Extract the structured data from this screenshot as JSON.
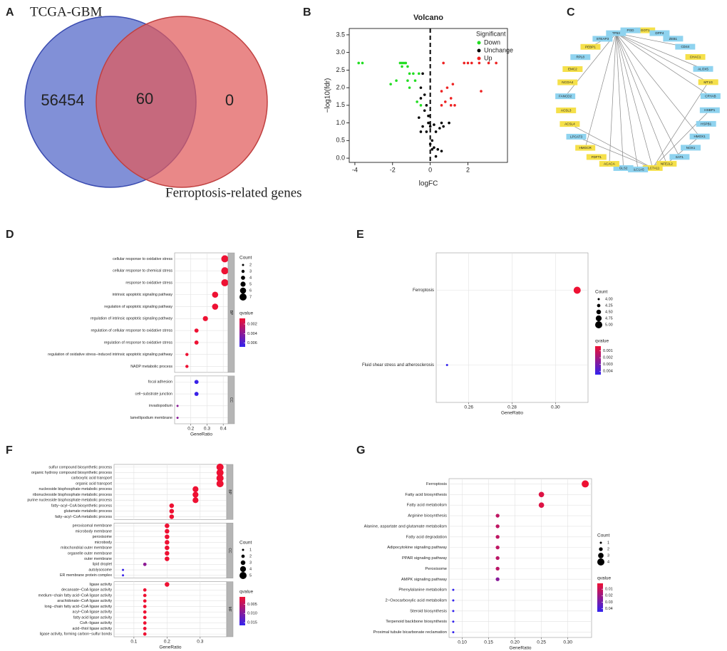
{
  "chart_data": [
    {
      "type": "venn",
      "panel": "A",
      "sets": [
        "TCGA-GBM",
        "Ferroptosis-related genes"
      ],
      "values": [
        56454,
        60,
        0
      ],
      "colors": [
        "#5065c8",
        "#e05a5a"
      ]
    },
    {
      "type": "volcano",
      "panel": "B",
      "title": "Volcano",
      "xlabel": "logFC",
      "ylabel": "−log10(fdr)",
      "legend_title": "Significant",
      "xlim": [
        -4.3,
        4.1
      ],
      "xticks": [
        -4,
        -2,
        0,
        2
      ],
      "ylim": [
        -0.12,
        3.68
      ],
      "yticks": [
        {
          "value": 0,
          "label": "0.0"
        },
        0.5,
        {
          "value": 1,
          "label": "1.0"
        },
        1.5,
        {
          "value": 2,
          "label": "2.0"
        },
        2.5,
        {
          "value": 3,
          "label": "3.0"
        },
        3.5
      ],
      "vline": 0,
      "series": [
        {
          "name": "Down",
          "color": "#22dd22",
          "x": [
            -3.8,
            -3.6,
            -1.6,
            -1.5,
            -1.4,
            -1.3,
            -1.5,
            -1.2,
            -1.1,
            -0.9,
            -0.6,
            -1.8,
            -1.2,
            -0.8,
            -1.1,
            -2.1,
            -0.7,
            -0.5
          ],
          "y": [
            2.7,
            2.7,
            2.7,
            2.7,
            2.7,
            2.7,
            2.6,
            2.6,
            2.4,
            2.4,
            2.4,
            2.2,
            2.2,
            2.2,
            2.0,
            2.1,
            1.6,
            1.5
          ]
        },
        {
          "name": "Unchange",
          "color": "#000000",
          "x": [
            -0.4,
            -0.5,
            -0.3,
            -0.5,
            -0.2,
            -0.3,
            -0.1,
            -0.1,
            0,
            0.2,
            -0.6,
            -0.4,
            -0.2,
            -0.5,
            0.3,
            0.5,
            0.7,
            0.6,
            1.0,
            0.1,
            0.2,
            0.1,
            0.4,
            0.6,
            0.3,
            0
          ],
          "y": [
            2.4,
            2.0,
            1.8,
            1.7,
            1.5,
            1.35,
            1.2,
            1.0,
            0.9,
            0.95,
            1.15,
            0.9,
            0.75,
            0.75,
            0.75,
            0.85,
            0.9,
            1.0,
            1.0,
            0.5,
            0.3,
            0.25,
            0.25,
            0.2,
            0.05,
            0.4
          ]
        },
        {
          "name": "Up",
          "color": "#ee2222",
          "x": [
            0.7,
            1.8,
            2.0,
            2.2,
            2.6,
            3.1,
            3.5,
            0.9,
            1.2,
            0.6,
            1.1,
            2.7,
            0.8,
            1.1,
            1.3,
            0.6
          ],
          "y": [
            2.7,
            2.7,
            2.7,
            2.7,
            2.7,
            2.7,
            2.7,
            2.0,
            2.1,
            1.9,
            1.7,
            1.9,
            1.6,
            1.5,
            1.5,
            1.5
          ]
        }
      ]
    },
    {
      "type": "network",
      "panel": "C",
      "nodes": [
        {
          "label": "GOT1",
          "color": "#f5e04a"
        },
        {
          "label": "DPP4",
          "color": "#8fd3ef"
        },
        {
          "label": "ZEB1",
          "color": "#8fd3ef"
        },
        {
          "label": "CD44",
          "color": "#8fd3ef"
        },
        {
          "label": "CHAC1",
          "color": "#f5e04a"
        },
        {
          "label": "ALOX5",
          "color": "#8fd3ef"
        },
        {
          "label": "MT1G",
          "color": "#f5e04a"
        },
        {
          "label": "CRYAB",
          "color": "#8fd3ef"
        },
        {
          "label": "HSBP1",
          "color": "#8fd3ef"
        },
        {
          "label": "HSPB1",
          "color": "#8fd3ef"
        },
        {
          "label": "HMOX1",
          "color": "#8fd3ef"
        },
        {
          "label": "NOX1",
          "color": "#8fd3ef"
        },
        {
          "label": "SAT1",
          "color": "#8fd3ef"
        },
        {
          "label": "NFE2L2",
          "color": "#f5e04a"
        },
        {
          "label": "SLC7A11",
          "color": "#f5e04a"
        },
        {
          "label": "SLC1A5",
          "color": "#8fd3ef"
        },
        {
          "label": "GLS2",
          "color": "#8fd3ef"
        },
        {
          "label": "ACACA",
          "color": "#f5e04a"
        },
        {
          "label": "FDFT1",
          "color": "#f5e04a"
        },
        {
          "label": "HMGCR",
          "color": "#f5e04a"
        },
        {
          "label": "LPCAT3",
          "color": "#8fd3ef"
        },
        {
          "label": "ACSL4",
          "color": "#f5e04a"
        },
        {
          "label": "ACSL3",
          "color": "#f5e04a"
        },
        {
          "label": "FANCD2",
          "color": "#8fd3ef"
        },
        {
          "label": "NCOA4",
          "color": "#f5e04a"
        },
        {
          "label": "EMC2",
          "color": "#f5e04a"
        },
        {
          "label": "RPL8",
          "color": "#8fd3ef"
        },
        {
          "label": "PEBP1",
          "color": "#f5e04a"
        },
        {
          "label": "STEAP3",
          "color": "#8fd3ef"
        },
        {
          "label": "TP53",
          "color": "#8fd3ef"
        },
        {
          "label": "PGD",
          "color": "#8fd3ef"
        }
      ],
      "edges": [
        [
          29,
          0
        ],
        [
          29,
          3
        ],
        [
          29,
          5
        ],
        [
          29,
          6
        ],
        [
          29,
          7
        ],
        [
          29,
          10
        ],
        [
          29,
          12
        ],
        [
          29,
          13
        ],
        [
          29,
          14
        ],
        [
          29,
          15
        ],
        [
          29,
          16
        ],
        [
          29,
          17
        ],
        [
          29,
          19
        ],
        [
          29,
          23
        ],
        [
          29,
          27
        ],
        [
          29,
          28
        ],
        [
          10,
          13
        ],
        [
          14,
          21
        ],
        [
          14,
          20
        ],
        [
          6,
          14
        ],
        [
          8,
          14
        ]
      ]
    },
    {
      "type": "dot",
      "panel": "D",
      "xlabel": "GeneRatio",
      "xlim": [
        0.1,
        0.43
      ],
      "xticks": [
        0.2,
        0.3,
        0.4
      ],
      "size_legend_title": "Count",
      "size_ticks": [
        2,
        3,
        4,
        5,
        6,
        7
      ],
      "color_legend_title": "qvalue",
      "color_ticks": [
        0.002,
        0.004,
        0.006
      ],
      "qlim": [
        0.0008,
        0.0068
      ],
      "color_scale": [
        "#ee1133",
        "#3322ee"
      ],
      "facets": [
        {
          "name": "BP",
          "terms": [
            "cellular response to oxidative stress",
            "cellular response to chemical stress",
            "response to oxidative stress",
            "intrinsic apoptotic signaling pathway",
            "regulation of apoptotic signaling pathway",
            "regulation of intrinsic apoptotic signaling pathway",
            "regulation of cellular response to oxidative stress",
            "regulation of response to oxidative stress",
            "regulation of oxidative stress−induced intrinsic apoptotic signaling pathway",
            "NADP metabolic process"
          ],
          "gene_ratio": [
            0.41,
            0.41,
            0.41,
            0.35,
            0.35,
            0.29,
            0.235,
            0.235,
            0.176,
            0.176
          ],
          "count": [
            7,
            7,
            7,
            6,
            6,
            5,
            4,
            4,
            3,
            3
          ],
          "qvalue": [
            0.0008,
            0.0008,
            0.0008,
            0.0008,
            0.0008,
            0.0008,
            0.0008,
            0.0008,
            0.0008,
            0.0008
          ]
        },
        {
          "name": "CC",
          "terms": [
            "focal adhesion",
            "cell−substrate junction",
            "invadopodium",
            "lamellipodium membrane"
          ],
          "gene_ratio": [
            0.235,
            0.235,
            0.118,
            0.118
          ],
          "count": [
            4,
            4,
            2,
            2
          ],
          "qvalue": [
            0.0066,
            0.0066,
            0.004,
            0.004
          ]
        }
      ]
    },
    {
      "type": "dot",
      "panel": "E",
      "xlabel": "GeneRatio",
      "xlim": [
        0.245,
        0.315
      ],
      "xticks": [
        0.26,
        0.28,
        {
          "value": 0.3,
          "label": "0.30"
        }
      ],
      "size_legend_title": "Count",
      "size_ticks": [
        {
          "value": 4,
          "label": "4.00"
        },
        4.25,
        {
          "value": 4.5,
          "label": "4.50"
        },
        4.75,
        {
          "value": 5,
          "label": "5.00"
        }
      ],
      "color_legend_title": "qvalue",
      "color_ticks": [
        0.001,
        0.002,
        0.003,
        0.004
      ],
      "qlim": [
        0.0003,
        0.0045
      ],
      "color_scale": [
        "#ee1133",
        "#3322ee"
      ],
      "facets": [
        {
          "terms": [
            "Ferroptosis",
            "Fluid shear stress and atherosclerosis"
          ],
          "gene_ratio": [
            0.31,
            0.25
          ],
          "count": [
            5,
            4
          ],
          "qvalue": [
            0.0003,
            0.0045
          ]
        }
      ]
    },
    {
      "type": "dot",
      "panel": "F",
      "xlabel": "GeneRatio",
      "xlim": [
        0.04,
        0.38
      ],
      "xticks": [
        0.1,
        0.2,
        0.3
      ],
      "size_legend_title": "Count",
      "size_ticks": [
        1,
        2,
        3,
        4,
        5
      ],
      "color_legend_title": "qvalue",
      "color_ticks": [
        0.005,
        {
          "value": 0.01,
          "label": "0.010"
        },
        0.015
      ],
      "qlim": [
        0.001,
        0.0165
      ],
      "color_scale": [
        "#ee1133",
        "#3322ee"
      ],
      "facets": [
        {
          "name": "BP",
          "terms": [
            "sulfur compound biosynthetic process",
            "organic hydroxy compound biosynthetic process",
            "carboxylic acid transport",
            "organic acid transport",
            "nucleoside bisphosphate metabolic process",
            "ribonucleoside bisphosphate metabolic process",
            "purine nucleoside bisphosphate metabolic process",
            "fatty−acyl−CoA biosynthetic process",
            "glutamate metabolic process",
            "fatty−acyl−CoA metabolic process"
          ],
          "gene_ratio": [
            0.36,
            0.36,
            0.36,
            0.36,
            0.286,
            0.286,
            0.286,
            0.214,
            0.214,
            0.214
          ],
          "count": [
            5,
            5,
            5,
            5,
            4,
            4,
            4,
            3,
            3,
            3
          ],
          "qvalue": [
            0.001,
            0.001,
            0.001,
            0.001,
            0.001,
            0.001,
            0.001,
            0.001,
            0.001,
            0.001
          ]
        },
        {
          "name": "CC",
          "terms": [
            "peroxisomal membrane",
            "microbody membrane",
            "peroxisome",
            "microbody",
            "mitochondrial outer membrane",
            "organelle outer membrane",
            "outer membrane",
            "lipid droplet",
            "autolysosome",
            "ER membrane protein complex"
          ],
          "gene_ratio": [
            0.2,
            0.2,
            0.2,
            0.2,
            0.2,
            0.2,
            0.2,
            0.133,
            0.067,
            0.067
          ],
          "count": [
            3,
            3,
            3,
            3,
            3,
            3,
            3,
            2,
            1,
            1
          ],
          "qvalue": [
            0.001,
            0.001,
            0.001,
            0.001,
            0.001,
            0.001,
            0.001,
            0.009,
            0.016,
            0.016
          ]
        },
        {
          "name": "MF",
          "terms": [
            "ligase activity",
            "decanoate−CoA ligase activity",
            "medium−chain fatty acid−CoA ligase activity",
            "arachidonate−CoA ligase activity",
            "long−chain fatty acid−CoA ligase activity",
            "acyl−CoA ligase activity",
            "fatty acid ligase activity",
            "CoA−ligase activity",
            "acid−thiol ligase activity",
            "ligase activity, forming carbon−sulfur bonds"
          ],
          "gene_ratio": [
            0.2,
            0.133,
            0.133,
            0.133,
            0.133,
            0.133,
            0.133,
            0.133,
            0.133,
            0.133
          ],
          "count": [
            3,
            2,
            2,
            2,
            2,
            2,
            2,
            2,
            2,
            2
          ],
          "qvalue": [
            0.001,
            0.001,
            0.001,
            0.001,
            0.001,
            0.001,
            0.001,
            0.001,
            0.001,
            0.001
          ]
        }
      ]
    },
    {
      "type": "dot",
      "panel": "G",
      "xlabel": "GeneRatio",
      "xlim": [
        0.075,
        0.345
      ],
      "xticks": [
        {
          "value": 0.1,
          "label": "0.10"
        },
        0.15,
        {
          "value": 0.2,
          "label": "0.20"
        },
        0.25,
        {
          "value": 0.3,
          "label": "0.30"
        }
      ],
      "size_legend_title": "Count",
      "size_ticks": [
        1,
        2,
        3,
        4
      ],
      "color_legend_title": "qvalue",
      "color_ticks": [
        0.01,
        0.02,
        0.03,
        0.04
      ],
      "qlim": [
        0.001,
        0.045
      ],
      "color_scale": [
        "#ee1133",
        "#3322ee"
      ],
      "facets": [
        {
          "terms": [
            "Ferroptosis",
            "Fatty acid biosynthesis",
            "Fatty acid metabolism",
            "Arginine biosynthesis",
            "Alanine, aspartate and glutamate metabolism",
            "Fatty acid degradation",
            "Adipocytokine signaling pathway",
            "PPAR signaling pathway",
            "Peroxisome",
            "AMPK signaling pathway",
            "Phenylalanine metabolism",
            "2−Oxocarboxylic acid metabolism",
            "Steroid biosynthesis",
            "Terpenoid backbone biosynthesis",
            "Proximal tubule bicarbonate reclamation"
          ],
          "gene_ratio": [
            0.333,
            0.25,
            0.25,
            0.167,
            0.167,
            0.167,
            0.167,
            0.167,
            0.167,
            0.167,
            0.083,
            0.083,
            0.083,
            0.083,
            0.083
          ],
          "count": [
            4,
            3,
            3,
            2,
            2,
            2,
            2,
            2,
            2,
            2,
            1,
            1,
            1,
            1,
            1
          ],
          "qvalue": [
            0.001,
            0.005,
            0.005,
            0.012,
            0.012,
            0.012,
            0.012,
            0.013,
            0.013,
            0.025,
            0.045,
            0.045,
            0.045,
            0.045,
            0.045
          ]
        }
      ]
    }
  ]
}
